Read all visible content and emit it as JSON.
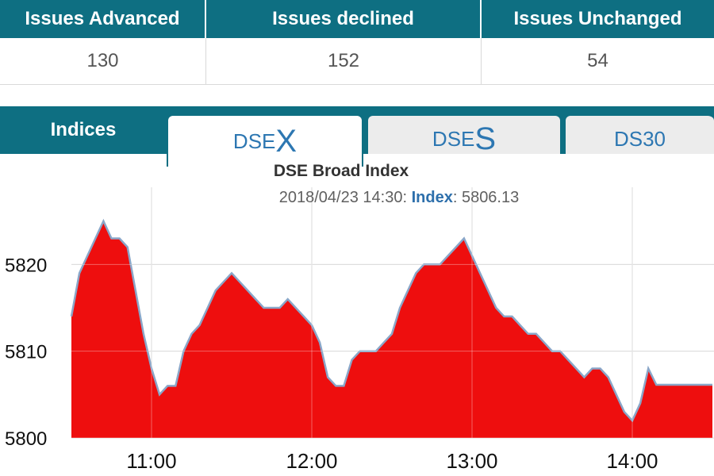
{
  "stats": {
    "headers": [
      "Issues Advanced",
      "Issues declined",
      "Issues Unchanged"
    ],
    "values": [
      "130",
      "152",
      "54"
    ]
  },
  "tabs": {
    "section_label": "Indices",
    "items": [
      {
        "prefix": "DSE",
        "suffix": "X",
        "active": true
      },
      {
        "prefix": "DSE",
        "suffix": "S",
        "active": false
      },
      {
        "label": "DS30",
        "active": false
      }
    ]
  },
  "chart": {
    "title": "DSE Broad Index",
    "tooltip": {
      "datetime": "2018/04/23 14:30:",
      "label": "Index",
      "value": ": 5806.13"
    },
    "colors": {
      "fill": "#ee0e0e",
      "line": "#8aa6c8",
      "grid": "#c8c8c8"
    }
  },
  "chart_data": {
    "type": "area",
    "title": "DSE Broad Index",
    "xlabel": "",
    "ylabel": "",
    "ylim": [
      5800,
      5830
    ],
    "y_ticks": [
      5800,
      5810,
      5820
    ],
    "x_ticks": [
      "11:00",
      "12:00",
      "13:00",
      "14:00"
    ],
    "x_range": [
      "10:30",
      "14:30"
    ],
    "grid": true,
    "series": [
      {
        "x": [
          "10:30",
          "10:33",
          "10:36",
          "10:39",
          "10:42",
          "10:45",
          "10:48",
          "10:51",
          "10:54",
          "10:57",
          "11:00",
          "11:03",
          "11:06",
          "11:09",
          "11:12",
          "11:15",
          "11:18",
          "11:21",
          "11:24",
          "11:27",
          "11:30",
          "11:33",
          "11:36",
          "11:39",
          "11:42",
          "11:45",
          "11:48",
          "11:51",
          "11:54",
          "11:57",
          "12:00",
          "12:03",
          "12:06",
          "12:09",
          "12:12",
          "12:15",
          "12:18",
          "12:21",
          "12:24",
          "12:27",
          "12:30",
          "12:33",
          "12:36",
          "12:39",
          "12:42",
          "12:45",
          "12:48",
          "12:51",
          "12:54",
          "12:57",
          "13:00",
          "13:03",
          "13:06",
          "13:09",
          "13:12",
          "13:15",
          "13:18",
          "13:21",
          "13:24",
          "13:27",
          "13:30",
          "13:33",
          "13:36",
          "13:39",
          "13:42",
          "13:45",
          "13:48",
          "13:51",
          "13:54",
          "13:57",
          "14:00",
          "14:03",
          "14:06",
          "14:09",
          "14:12",
          "14:15",
          "14:18",
          "14:21",
          "14:24",
          "14:27",
          "14:30"
        ],
        "values": [
          5814,
          5819,
          5821,
          5823,
          5825,
          5823,
          5823,
          5822,
          5817,
          5812,
          5808,
          5805,
          5806,
          5806,
          5810,
          5812,
          5813,
          5815,
          5817,
          5818,
          5819,
          5818,
          5817,
          5816,
          5815,
          5815,
          5815,
          5816,
          5815,
          5814,
          5813,
          5811,
          5807,
          5806,
          5806,
          5809,
          5810,
          5810,
          5810,
          5811,
          5812,
          5815,
          5817,
          5819,
          5820,
          5820,
          5820,
          5821,
          5822,
          5823,
          5821,
          5819,
          5817,
          5815,
          5814,
          5814,
          5813,
          5812,
          5812,
          5811,
          5810,
          5810,
          5809,
          5808,
          5807,
          5808,
          5808,
          5807,
          5805,
          5803,
          5802,
          5804,
          5808,
          5806.13,
          5806.13,
          5806.13,
          5806.13,
          5806.13,
          5806.13,
          5806.13,
          5806.13
        ]
      }
    ]
  }
}
